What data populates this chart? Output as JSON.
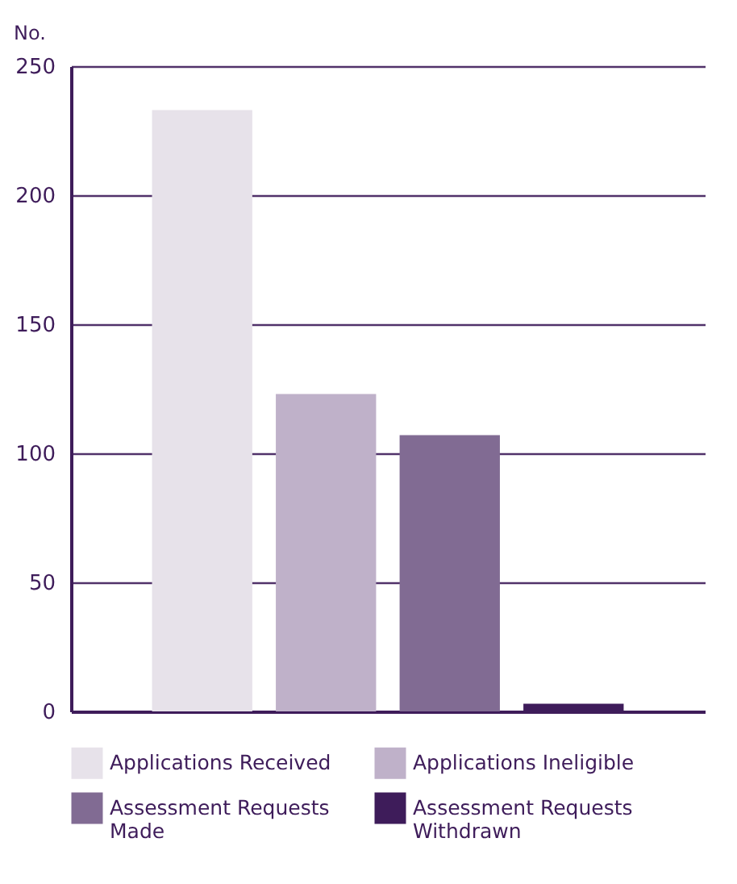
{
  "chart_data": {
    "type": "bar",
    "ylabel": "No.",
    "categories": [
      null
    ],
    "series": [
      {
        "name": "Applications Received",
        "color": "#e7e2ea",
        "values": [
          233
        ]
      },
      {
        "name": "Applications Ineligible",
        "color": "#bfb1c9",
        "values": [
          123
        ]
      },
      {
        "name": "Assessment Requests Made",
        "color": "#816b93",
        "values": [
          107
        ]
      },
      {
        "name": "Assessment Requests Withdrawn",
        "color": "#3e1c5a",
        "values": [
          3
        ]
      }
    ],
    "ylim": [
      0,
      250
    ],
    "yticks": [
      0,
      50,
      100,
      150,
      200,
      250
    ],
    "grid": "y",
    "legend": "bottom"
  }
}
